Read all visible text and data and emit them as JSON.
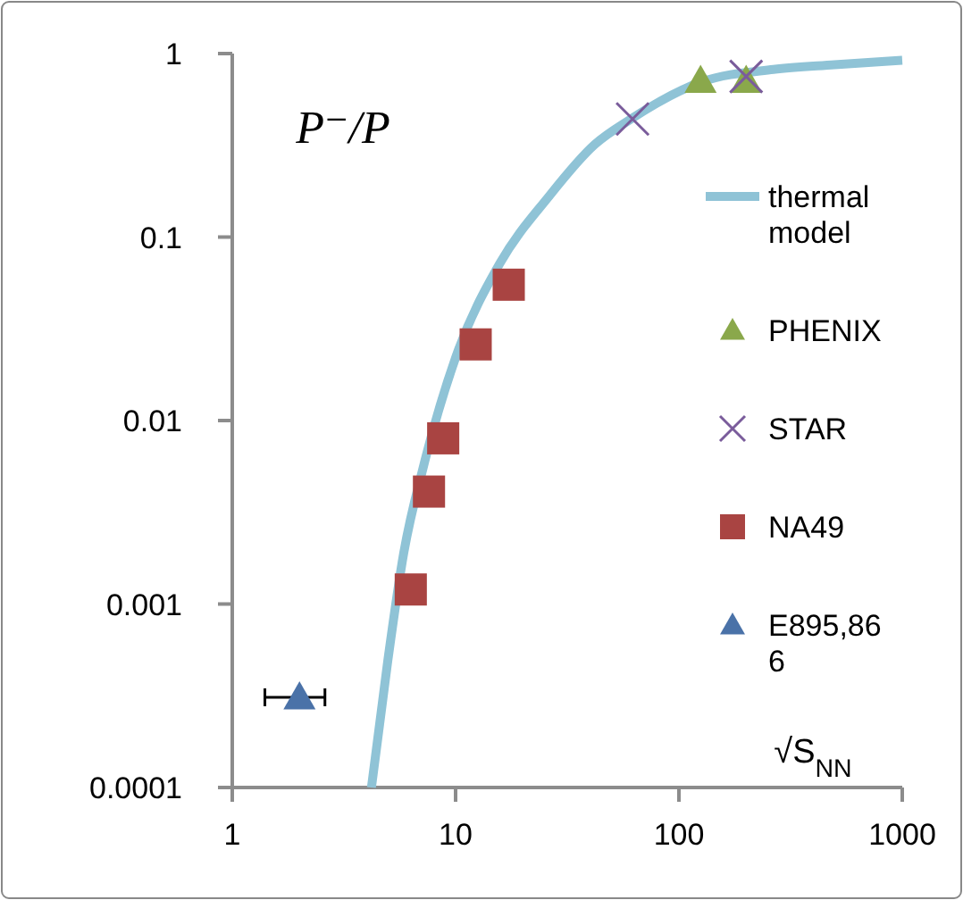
{
  "chart_data": {
    "type": "scatter",
    "xlabel": "√S$_{NN}$",
    "ylabel": "P⁻/P",
    "log": "xy",
    "xlim": [
      1,
      1000
    ],
    "xticks": [
      1,
      10,
      100,
      1000
    ],
    "ylim": [
      0.0001,
      1
    ],
    "yticks": [
      0.0001,
      0.001,
      0.01,
      0.1,
      1
    ],
    "grid": false,
    "legend": "right",
    "series": [
      {
        "name": "thermal model",
        "type": "line",
        "marker": "none",
        "line_style": "solid",
        "color": "#8fc3d6",
        "x": [
          4.2,
          4.97,
          5.86,
          7.2,
          10,
          15.8,
          26,
          42,
          61,
          126,
          265,
          497,
          1000
        ],
        "values": [
          0.0001,
          0.00049,
          0.0019,
          0.0057,
          0.022,
          0.072,
          0.165,
          0.32,
          0.44,
          0.7,
          0.82,
          0.87,
          0.92
        ]
      },
      {
        "name": "PHENIX",
        "marker": "triangle",
        "color": "#8aa84b",
        "x": [
          125,
          200
        ],
        "values": [
          0.71,
          0.71
        ]
      },
      {
        "name": "STAR",
        "marker": "cross",
        "color": "#7a5c9b",
        "x": [
          62,
          200
        ],
        "values": [
          0.44,
          0.75
        ]
      },
      {
        "name": "NA49",
        "marker": "square",
        "color": "#a94442",
        "x": [
          6.3,
          7.6,
          8.8,
          12.3,
          17.3
        ],
        "values": [
          0.0012,
          0.0041,
          0.008,
          0.026,
          0.055
        ]
      },
      {
        "name": "E895,866",
        "marker": "triangle",
        "color": "#4a72a8",
        "x": [
          2
        ],
        "values": [
          0.00031
        ],
        "xerrors": [
          [
            1.4,
            2.6
          ]
        ]
      }
    ]
  }
}
